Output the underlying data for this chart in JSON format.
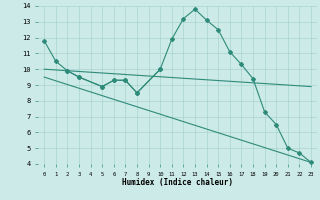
{
  "xlabel": "Humidex (Indice chaleur)",
  "xlim": [
    -0.5,
    23.5
  ],
  "ylim": [
    4,
    14
  ],
  "xticks": [
    0,
    1,
    2,
    3,
    4,
    5,
    6,
    7,
    8,
    9,
    10,
    11,
    12,
    13,
    14,
    15,
    16,
    17,
    18,
    19,
    20,
    21,
    22,
    23
  ],
  "yticks": [
    4,
    5,
    6,
    7,
    8,
    9,
    10,
    11,
    12,
    13,
    14
  ],
  "bg_color": "#cceae7",
  "grid_color": "#aad4d0",
  "line_color": "#2e8b7a",
  "series": [
    {
      "x": [
        0,
        1,
        2,
        3,
        5,
        6,
        7,
        8,
        10,
        11,
        12,
        13,
        14,
        15,
        16,
        17,
        18,
        19,
        20,
        21,
        22,
        23
      ],
      "y": [
        11.8,
        10.5,
        9.9,
        9.5,
        8.9,
        9.3,
        9.3,
        8.5,
        10.0,
        11.9,
        13.2,
        13.8,
        13.1,
        12.5,
        11.1,
        10.3,
        9.4,
        7.3,
        6.5,
        5.0,
        4.7,
        4.1
      ],
      "marker": "D",
      "markersize": 2.0,
      "linewidth": 0.8,
      "zorder": 3
    },
    {
      "x": [
        0,
        23
      ],
      "y": [
        10.0,
        8.9
      ],
      "marker": null,
      "linewidth": 0.8,
      "zorder": 2
    },
    {
      "x": [
        0,
        23
      ],
      "y": [
        9.5,
        4.1
      ],
      "marker": null,
      "linewidth": 0.8,
      "zorder": 2
    },
    {
      "x": [
        2,
        3,
        5,
        6,
        7,
        8,
        10
      ],
      "y": [
        9.9,
        9.5,
        8.9,
        9.3,
        9.3,
        8.5,
        10.0
      ],
      "marker": "D",
      "markersize": 2.0,
      "linewidth": 0.8,
      "zorder": 3
    }
  ]
}
